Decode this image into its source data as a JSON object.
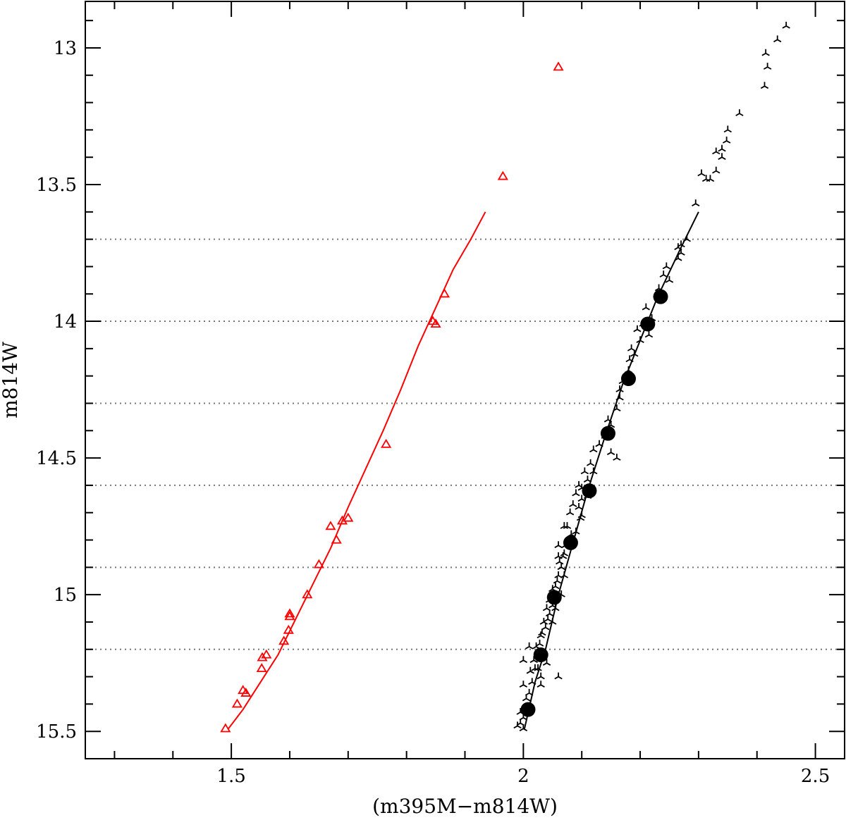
{
  "chart_data": {
    "type": "scatter",
    "title": "",
    "xlabel": "(m395M−m814W)",
    "ylabel": "m814W",
    "xlim": [
      1.25,
      2.55
    ],
    "ylim": [
      15.6,
      12.83
    ],
    "y_inverted": true,
    "x_major_ticks": [
      1.5,
      2,
      2.5
    ],
    "x_tick_labels": [
      "1.5",
      "2",
      "2.5"
    ],
    "x_minor_step": 0.1,
    "y_major_ticks": [
      13,
      13.5,
      14,
      14.5,
      15,
      15.5
    ],
    "y_tick_labels": [
      "13",
      "13.5",
      "14",
      "14.5",
      "15",
      "15.5"
    ],
    "y_minor_step": 0.1,
    "reference_lines_y": [
      13.7,
      14.0,
      14.3,
      14.6,
      14.9,
      15.2
    ],
    "grid": false,
    "legend": "none",
    "colors": {
      "red_series": "#ff0000",
      "black_series": "#000000",
      "reference_lines": "#777777"
    },
    "series": [
      {
        "marker": "open-triangle",
        "color": "#ff0000",
        "points": [
          [
            2.06,
            13.07
          ],
          [
            1.965,
            13.47
          ],
          [
            1.865,
            13.9
          ],
          [
            1.845,
            14.0
          ],
          [
            1.85,
            14.01
          ],
          [
            1.765,
            14.45
          ],
          [
            1.7,
            14.72
          ],
          [
            1.69,
            14.73
          ],
          [
            1.67,
            14.75
          ],
          [
            1.68,
            14.8
          ],
          [
            1.65,
            14.89
          ],
          [
            1.63,
            15.0
          ],
          [
            1.6,
            15.07
          ],
          [
            1.6,
            15.08
          ],
          [
            1.598,
            15.13
          ],
          [
            1.59,
            15.17
          ],
          [
            1.56,
            15.22
          ],
          [
            1.553,
            15.23
          ],
          [
            1.552,
            15.27
          ],
          [
            1.525,
            15.36
          ],
          [
            1.52,
            15.35
          ],
          [
            1.51,
            15.4
          ],
          [
            1.49,
            15.49
          ]
        ]
      },
      {
        "marker": "three-prong",
        "color": "#000000",
        "points": [
          [
            2.45,
            12.92
          ],
          [
            2.435,
            12.97
          ],
          [
            2.415,
            13.02
          ],
          [
            2.418,
            13.07
          ],
          [
            2.413,
            13.14
          ],
          [
            2.37,
            13.24
          ],
          [
            2.35,
            13.3
          ],
          [
            2.348,
            13.34
          ],
          [
            2.34,
            13.37
          ],
          [
            2.34,
            13.4
          ],
          [
            2.33,
            13.38
          ],
          [
            2.33,
            13.45
          ],
          [
            2.32,
            13.48
          ],
          [
            2.313,
            13.48
          ],
          [
            2.305,
            13.46
          ],
          [
            2.295,
            13.57
          ],
          [
            2.28,
            13.7
          ],
          [
            2.27,
            13.75
          ],
          [
            2.265,
            13.77
          ],
          [
            2.25,
            13.85
          ],
          [
            2.232,
            13.88
          ],
          [
            2.235,
            13.92
          ],
          [
            2.22,
            13.99
          ],
          [
            2.205,
            14.01
          ],
          [
            2.215,
            14.05
          ],
          [
            2.2,
            14.07
          ],
          [
            2.19,
            14.12
          ],
          [
            2.182,
            14.14
          ],
          [
            2.18,
            14.18
          ],
          [
            2.175,
            14.2
          ],
          [
            2.165,
            14.25
          ],
          [
            2.16,
            14.32
          ],
          [
            2.15,
            14.38
          ],
          [
            2.14,
            14.42
          ],
          [
            2.13,
            14.45
          ],
          [
            2.12,
            14.47
          ],
          [
            2.115,
            14.52
          ],
          [
            2.12,
            14.55
          ],
          [
            2.11,
            14.58
          ],
          [
            2.1,
            14.61
          ],
          [
            2.1,
            14.65
          ],
          [
            2.095,
            14.68
          ],
          [
            2.098,
            14.72
          ],
          [
            2.1,
            14.71
          ],
          [
            2.09,
            14.77
          ],
          [
            2.082,
            14.78
          ],
          [
            2.08,
            14.8
          ],
          [
            2.072,
            14.82
          ],
          [
            2.068,
            14.86
          ],
          [
            2.062,
            14.88
          ],
          [
            2.065,
            14.9
          ],
          [
            2.058,
            14.95
          ],
          [
            2.05,
            14.98
          ],
          [
            2.045,
            15.02
          ],
          [
            2.04,
            15.05
          ],
          [
            2.042,
            15.09
          ],
          [
            2.038,
            15.12
          ],
          [
            2.032,
            15.14
          ],
          [
            2.028,
            15.18
          ],
          [
            2.025,
            15.22
          ],
          [
            2.02,
            15.27
          ],
          [
            2.015,
            15.32
          ],
          [
            2.01,
            15.36
          ],
          [
            2.012,
            15.4
          ],
          [
            2.0,
            15.45
          ],
          [
            1.99,
            15.48
          ],
          [
            2.0,
            15.49
          ],
          [
            2.06,
            14.82
          ],
          [
            2.07,
            14.75
          ],
          [
            2.08,
            14.7
          ],
          [
            2.09,
            14.63
          ],
          [
            2.085,
            14.67
          ],
          [
            2.075,
            14.75
          ],
          [
            2.07,
            14.85
          ],
          [
            2.06,
            14.93
          ],
          [
            2.055,
            14.97
          ],
          [
            2.05,
            15.04
          ],
          [
            2.045,
            15.07
          ],
          [
            2.035,
            15.1
          ],
          [
            2.03,
            15.15
          ],
          [
            2.022,
            15.19
          ],
          [
            2.018,
            15.24
          ],
          [
            2.012,
            15.28
          ],
          [
            2.0,
            15.33
          ],
          [
            2.005,
            15.38
          ],
          [
            1.995,
            15.43
          ],
          [
            1.995,
            15.47
          ],
          [
            2.06,
            15.3
          ],
          [
            2.04,
            15.25
          ],
          [
            2.03,
            15.3
          ],
          [
            2.05,
            15.1
          ],
          [
            2.065,
            15.0
          ],
          [
            2.07,
            14.93
          ],
          [
            2.055,
            15.05
          ],
          [
            2.06,
            14.86
          ],
          [
            2.025,
            15.27
          ],
          [
            2.03,
            15.33
          ],
          [
            2.0,
            15.24
          ],
          [
            2.01,
            15.19
          ],
          [
            2.095,
            14.6
          ],
          [
            2.105,
            14.55
          ],
          [
            2.11,
            14.64
          ],
          [
            2.145,
            14.36
          ],
          [
            2.15,
            14.48
          ],
          [
            2.16,
            14.5
          ],
          [
            2.165,
            14.28
          ],
          [
            2.17,
            14.22
          ],
          [
            2.185,
            14.1
          ],
          [
            2.195,
            14.03
          ],
          [
            2.21,
            13.95
          ],
          [
            2.24,
            13.83
          ],
          [
            2.245,
            13.8
          ],
          [
            2.265,
            13.73
          ],
          [
            2.27,
            13.72
          ]
        ]
      },
      {
        "marker": "filled-circle",
        "color": "#000000",
        "points": [
          [
            2.235,
            13.91
          ],
          [
            2.213,
            14.01
          ],
          [
            2.18,
            14.21
          ],
          [
            2.145,
            14.41
          ],
          [
            2.113,
            14.62
          ],
          [
            2.081,
            14.81
          ],
          [
            2.053,
            15.01
          ],
          [
            2.03,
            15.22
          ],
          [
            2.008,
            15.42
          ]
        ]
      },
      {
        "type": "line",
        "color": "#ff0000",
        "points": [
          [
            1.935,
            13.6
          ],
          [
            1.91,
            13.7
          ],
          [
            1.88,
            13.81
          ],
          [
            1.85,
            13.95
          ],
          [
            1.82,
            14.09
          ],
          [
            1.79,
            14.25
          ],
          [
            1.76,
            14.4
          ],
          [
            1.73,
            14.54
          ],
          [
            1.7,
            14.68
          ],
          [
            1.67,
            14.83
          ],
          [
            1.64,
            14.96
          ],
          [
            1.61,
            15.09
          ],
          [
            1.58,
            15.22
          ],
          [
            1.55,
            15.32
          ],
          [
            1.52,
            15.42
          ],
          [
            1.495,
            15.49
          ]
        ]
      },
      {
        "type": "line",
        "color": "#000000",
        "points": [
          [
            2.3,
            13.6
          ],
          [
            2.27,
            13.73
          ],
          [
            2.25,
            13.82
          ],
          [
            2.23,
            13.91
          ],
          [
            2.2,
            14.07
          ],
          [
            2.17,
            14.23
          ],
          [
            2.14,
            14.42
          ],
          [
            2.11,
            14.62
          ],
          [
            2.085,
            14.81
          ],
          [
            2.06,
            15.0
          ],
          [
            2.038,
            15.2
          ],
          [
            2.02,
            15.32
          ],
          [
            2.002,
            15.49
          ]
        ]
      }
    ]
  }
}
